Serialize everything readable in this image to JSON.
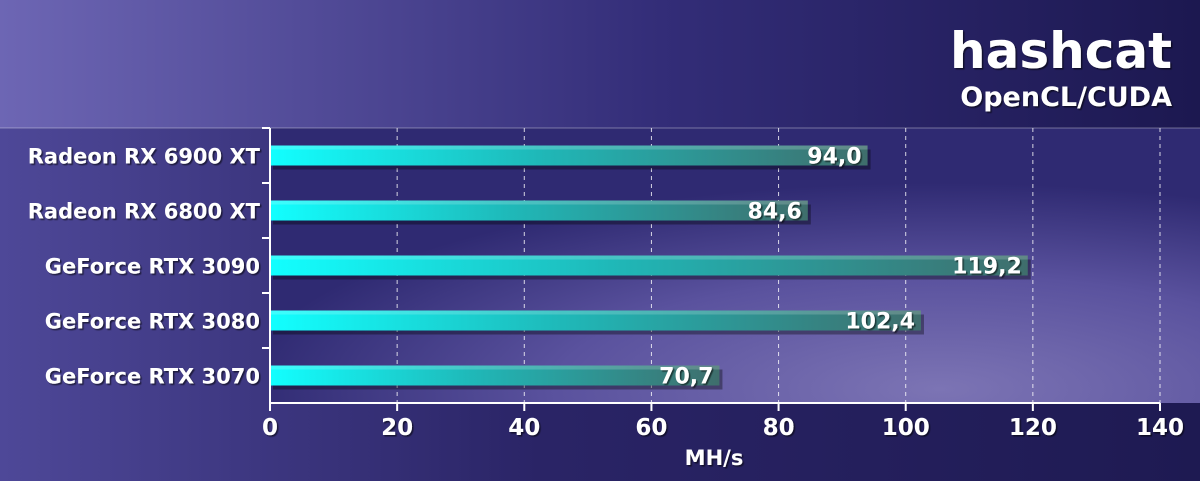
{
  "chart_data": {
    "type": "bar",
    "orientation": "horizontal",
    "title": "hashcat",
    "subtitle": "OpenCL/CUDA",
    "xlabel": "MH/s",
    "ylabel": "",
    "xlim": [
      0,
      140
    ],
    "ticks": [
      0,
      20,
      40,
      60,
      80,
      100,
      120,
      140
    ],
    "tick_labels": [
      "0",
      "20",
      "40",
      "60",
      "80",
      "100",
      "120",
      "140"
    ],
    "grid": true,
    "legend": "none",
    "categories": [
      "Radeon RX 6900 XT",
      "Radeon RX 6800 XT",
      "GeForce RTX 3090",
      "GeForce RTX 3080",
      "GeForce RTX 3070"
    ],
    "values": [
      94.0,
      84.6,
      119.2,
      102.4,
      70.7
    ],
    "value_labels": [
      "94,0",
      "84,6",
      "119,2",
      "102,4",
      "70,7"
    ]
  },
  "colors": {
    "background_dark": "#1e1a52",
    "header_light": "#6d66b4",
    "plot_light": "#7c74b4",
    "bar_start": "#12ffff",
    "bar_end": "#3f6e6c",
    "text": "#ffffff"
  }
}
